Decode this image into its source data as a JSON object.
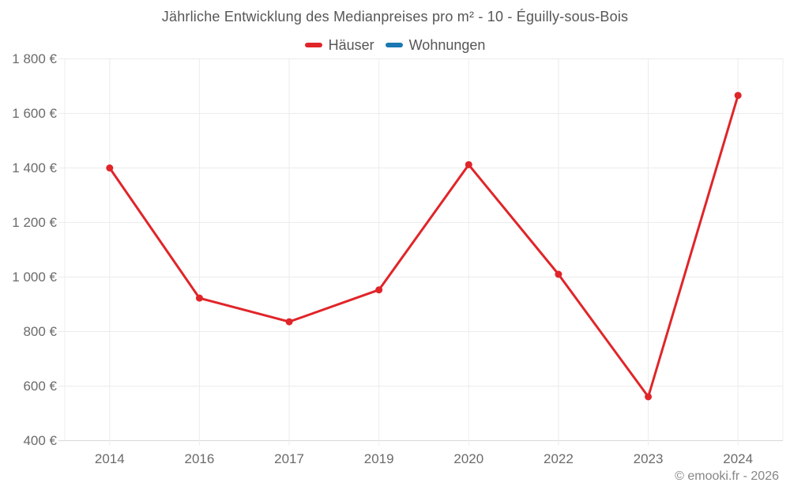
{
  "chart_data": {
    "type": "line",
    "title": "Jährliche Entwicklung des Medianpreises pro m² - 10 - Éguilly-sous-Bois",
    "categories": [
      "2014",
      "2016",
      "2017",
      "2019",
      "2020",
      "2022",
      "2023",
      "2024"
    ],
    "series": [
      {
        "name": "Häuser",
        "color": "#e02529",
        "values": [
          1400,
          923,
          836,
          953,
          1412,
          1010,
          561,
          1666
        ]
      },
      {
        "name": "Wohnungen",
        "color": "#1a78b2",
        "values": []
      }
    ],
    "y_axis": {
      "min": 400,
      "max": 1800,
      "step": 200,
      "unit": "€",
      "tick_labels": [
        "400 €",
        "600 €",
        "800 €",
        "1 000 €",
        "1 200 €",
        "1 400 €",
        "1 600 €",
        "1 800 €"
      ]
    },
    "x_axis": {
      "label": ""
    },
    "grid": true,
    "legend_position": "top",
    "colors": {
      "grid": "#ececec",
      "axis": "#d8d8d8",
      "text": "#6b6b6b"
    }
  },
  "footer": {
    "copyright": "© emooki.fr - 2026"
  }
}
